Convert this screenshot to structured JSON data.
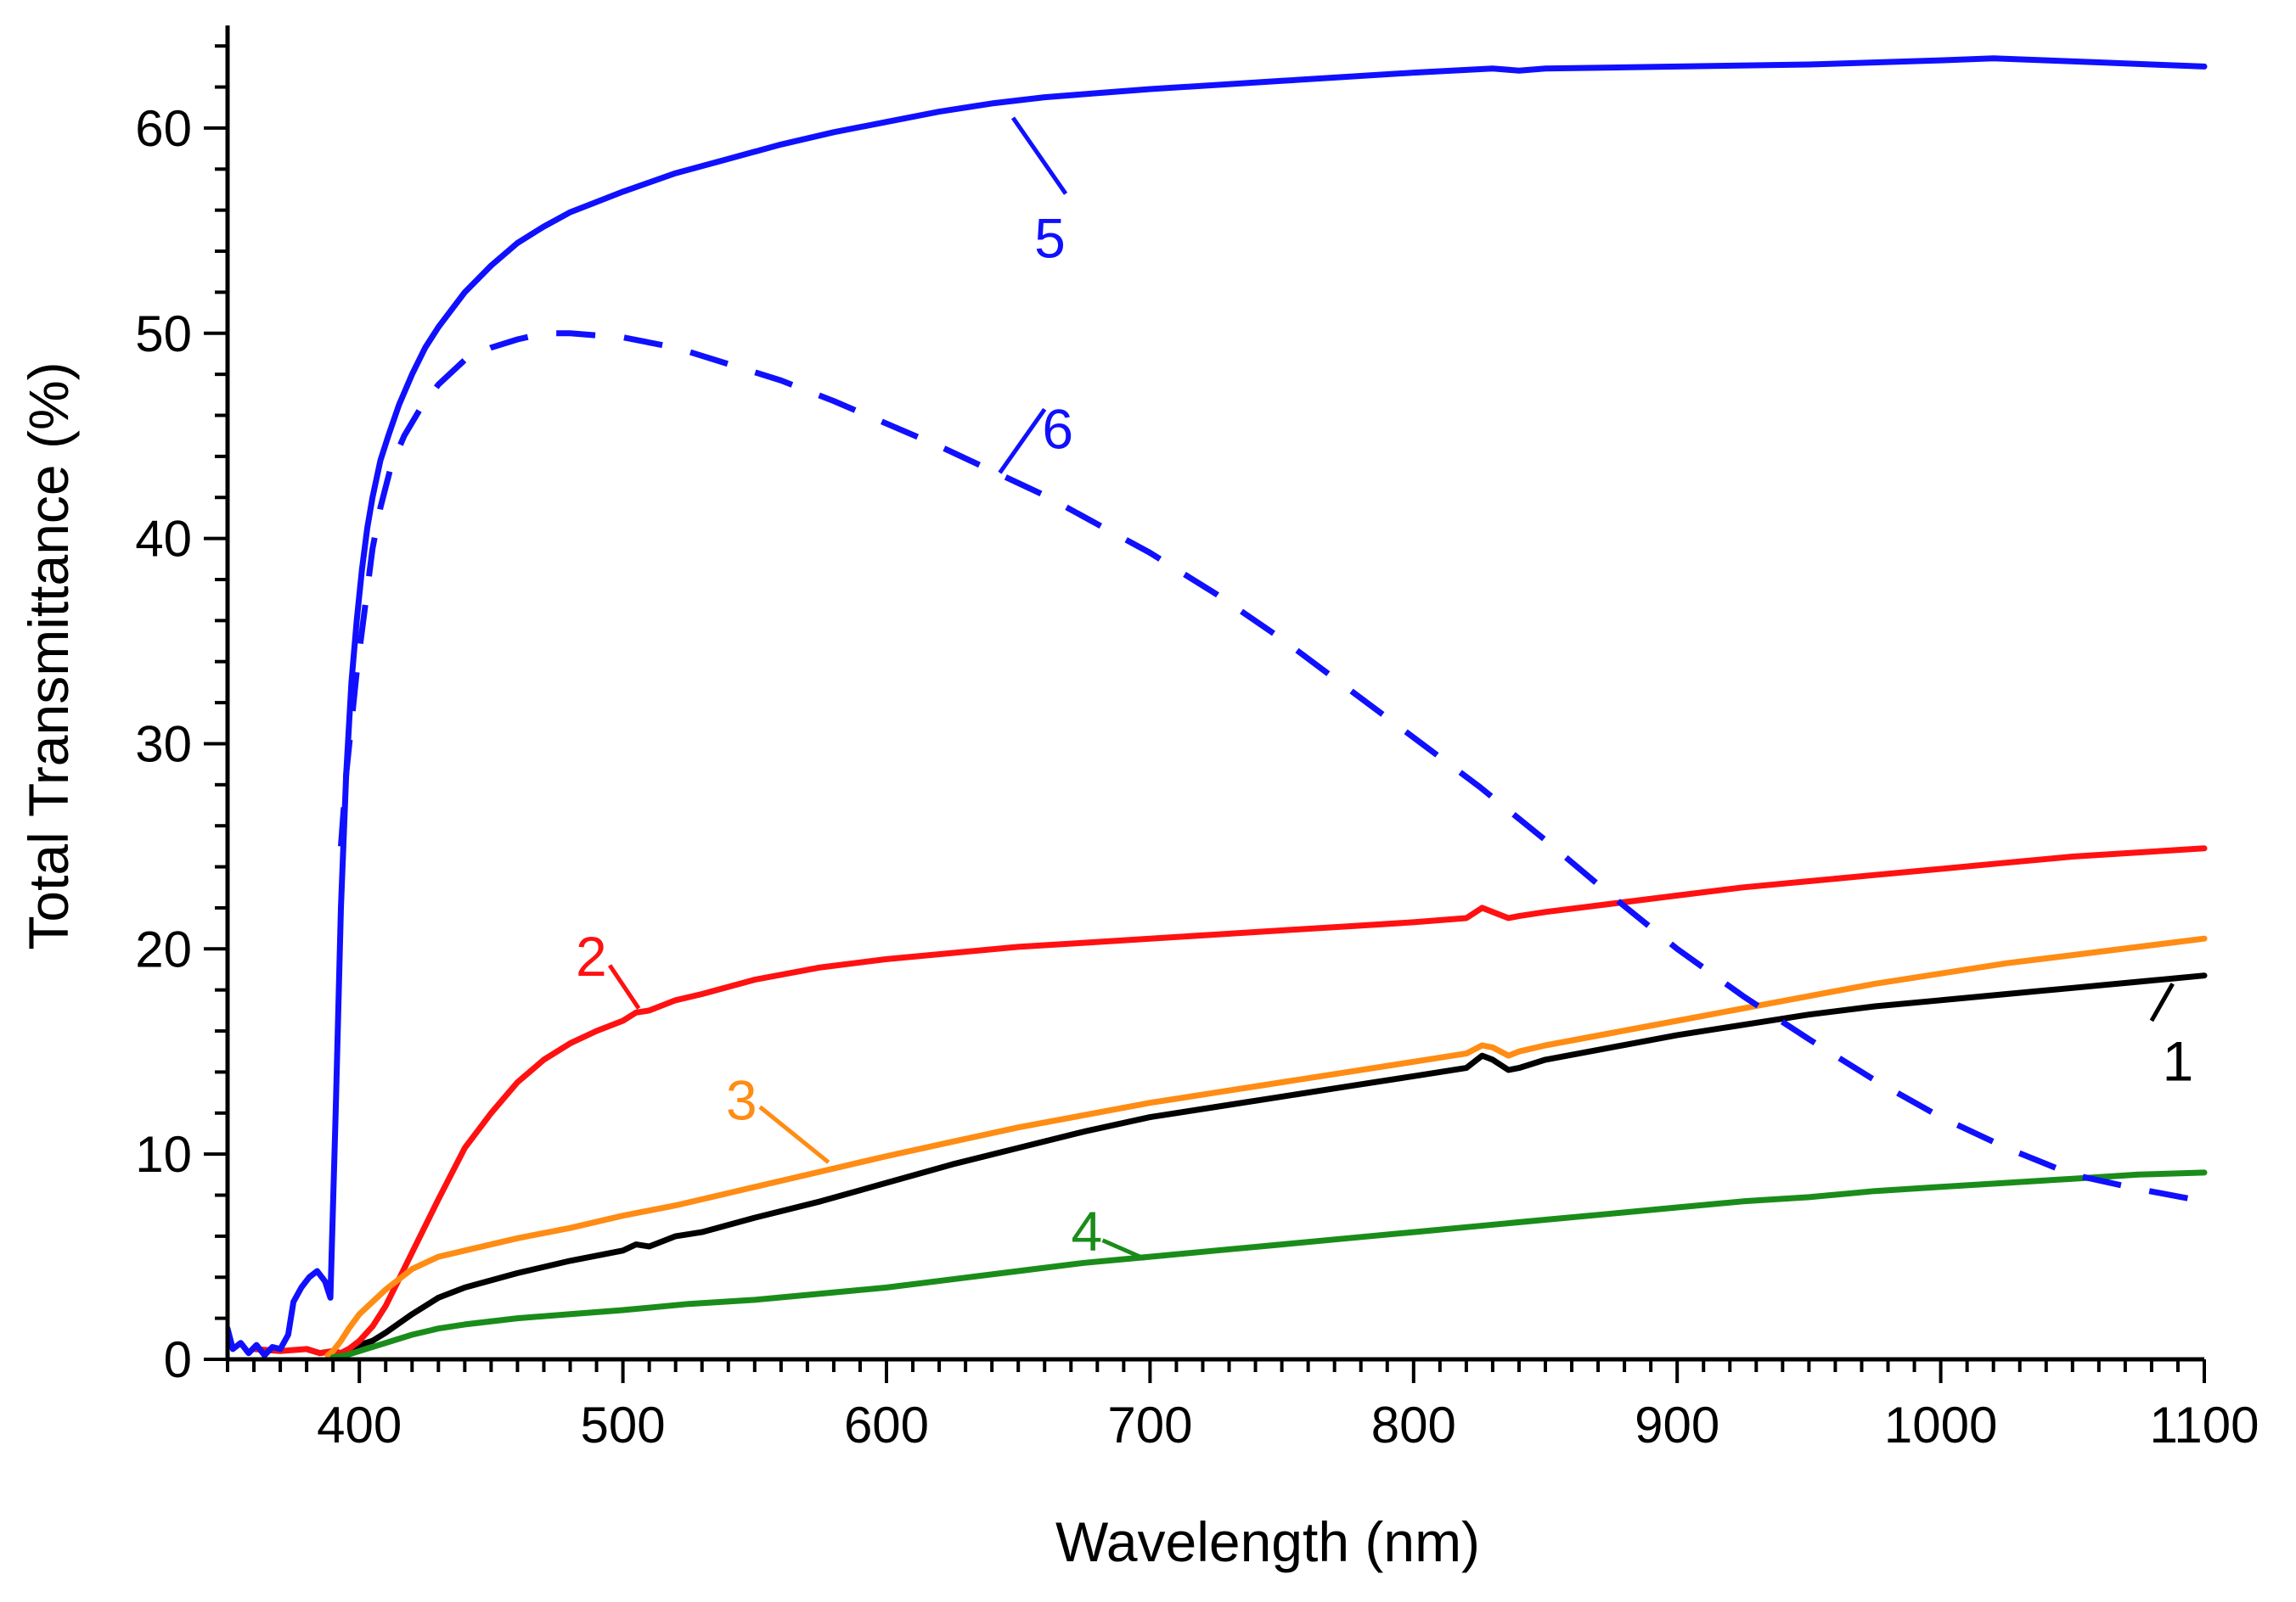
{
  "chart_data": {
    "type": "line",
    "xlabel": "Wavelength (nm)",
    "ylabel": "Total Transmittance (%)",
    "xlim": [
      350,
      1100
    ],
    "ylim": [
      0,
      65
    ],
    "x_ticks": [
      "400",
      "500",
      "600",
      "700",
      "800",
      "900",
      "1000",
      "1100"
    ],
    "y_ticks": [
      "0",
      "10",
      "20",
      "30",
      "40",
      "50",
      "60"
    ],
    "grid": false,
    "series": [
      {
        "name": "1",
        "label": "1",
        "color": "#000000",
        "dash": "solid",
        "label_at": [
          1090,
          14.5
        ],
        "leader_from": [
          1080,
          16.5
        ],
        "leader_to": [
          1088,
          18.3
        ],
        "x": [
          380,
          385,
          390,
          393,
          396,
          400,
          405,
          410,
          420,
          430,
          440,
          460,
          480,
          500,
          505,
          510,
          520,
          530,
          550,
          575,
          600,
          625,
          650,
          675,
          700,
          725,
          750,
          775,
          800,
          820,
          826,
          830,
          836,
          840,
          850,
          875,
          900,
          925,
          950,
          975,
          1000,
          1025,
          1050,
          1075,
          1100
        ],
        "y": [
          0.5,
          0.3,
          0.4,
          0.3,
          0.5,
          0.7,
          0.9,
          1.3,
          2.2,
          3.0,
          3.5,
          4.2,
          4.8,
          5.3,
          5.6,
          5.5,
          6.0,
          6.2,
          6.9,
          7.7,
          8.6,
          9.5,
          10.3,
          11.1,
          11.8,
          12.3,
          12.8,
          13.3,
          13.8,
          14.2,
          14.8,
          14.6,
          14.1,
          14.2,
          14.6,
          15.2,
          15.8,
          16.3,
          16.8,
          17.2,
          17.5,
          17.8,
          18.1,
          18.4,
          18.7
        ]
      },
      {
        "name": "2",
        "label": "2",
        "color": "#ff1111",
        "dash": "solid",
        "label_at": [
          488,
          19.6
        ],
        "leader_from": [
          495,
          19.2
        ],
        "leader_to": [
          506,
          17.1
        ],
        "x": [
          360,
          370,
          380,
          385,
          390,
          393,
          396,
          400,
          405,
          410,
          415,
          420,
          430,
          440,
          450,
          460,
          470,
          480,
          490,
          500,
          505,
          510,
          520,
          530,
          550,
          575,
          600,
          625,
          650,
          675,
          700,
          725,
          750,
          775,
          800,
          820,
          826,
          830,
          836,
          840,
          850,
          875,
          900,
          925,
          950,
          975,
          1000,
          1025,
          1050,
          1075,
          1100
        ],
        "y": [
          0.5,
          0.4,
          0.5,
          0.3,
          0.4,
          0.3,
          0.5,
          0.9,
          1.6,
          2.6,
          3.9,
          5.2,
          7.8,
          10.3,
          12.0,
          13.5,
          14.6,
          15.4,
          16.0,
          16.5,
          16.9,
          17.0,
          17.5,
          17.8,
          18.5,
          19.1,
          19.5,
          19.8,
          20.1,
          20.3,
          20.5,
          20.7,
          20.9,
          21.1,
          21.3,
          21.5,
          22.0,
          21.8,
          21.5,
          21.6,
          21.8,
          22.2,
          22.6,
          23.0,
          23.3,
          23.6,
          23.9,
          24.2,
          24.5,
          24.7,
          24.9
        ]
      },
      {
        "name": "3",
        "label": "3",
        "color": "#ff8c14",
        "dash": "solid",
        "label_at": [
          545,
          12.6
        ],
        "leader_from": [
          552,
          12.3
        ],
        "leader_to": [
          578,
          9.6
        ],
        "x": [
          388,
          390,
          393,
          396,
          400,
          405,
          410,
          420,
          430,
          440,
          460,
          480,
          500,
          520,
          540,
          560,
          580,
          600,
          625,
          650,
          675,
          700,
          725,
          750,
          775,
          800,
          820,
          826,
          830,
          836,
          840,
          850,
          875,
          900,
          925,
          950,
          975,
          1000,
          1025,
          1050,
          1075,
          1100
        ],
        "y": [
          0.2,
          0.4,
          0.9,
          1.5,
          2.2,
          2.8,
          3.4,
          4.4,
          5.0,
          5.3,
          5.9,
          6.4,
          7.0,
          7.5,
          8.1,
          8.7,
          9.3,
          9.9,
          10.6,
          11.3,
          11.9,
          12.5,
          13.0,
          13.5,
          14.0,
          14.5,
          14.9,
          15.3,
          15.2,
          14.8,
          15.0,
          15.3,
          15.9,
          16.5,
          17.1,
          17.7,
          18.3,
          18.8,
          19.3,
          19.7,
          20.1,
          20.5
        ]
      },
      {
        "name": "4",
        "label": "4",
        "color": "#1a8c1a",
        "dash": "solid",
        "label_at": [
          676,
          6.2
        ],
        "leader_from": [
          682,
          5.8
        ],
        "leader_to": [
          698,
          4.9
        ],
        "x": [
          390,
          395,
          400,
          410,
          420,
          430,
          440,
          460,
          480,
          500,
          525,
          550,
          575,
          600,
          625,
          650,
          675,
          700,
          725,
          750,
          775,
          800,
          825,
          850,
          875,
          900,
          925,
          950,
          975,
          1000,
          1025,
          1050,
          1075,
          1100
        ],
        "y": [
          0.1,
          0.2,
          0.4,
          0.8,
          1.2,
          1.5,
          1.7,
          2.0,
          2.2,
          2.4,
          2.7,
          2.9,
          3.2,
          3.5,
          3.9,
          4.3,
          4.7,
          5.0,
          5.3,
          5.6,
          5.9,
          6.2,
          6.5,
          6.8,
          7.1,
          7.4,
          7.7,
          7.9,
          8.2,
          8.4,
          8.6,
          8.8,
          9.0,
          9.1
        ]
      },
      {
        "name": "5",
        "label": "5",
        "color": "#1010ff",
        "dash": "solid",
        "label_at": [
          662,
          54.6
        ],
        "leader_from": [
          668,
          56.8
        ],
        "leader_to": [
          648,
          60.5
        ],
        "x": [
          350,
          352,
          355,
          358,
          361,
          364,
          367,
          370,
          373,
          375,
          378,
          381,
          384,
          387,
          389,
          391,
          393,
          395,
          397,
          399,
          401,
          403,
          405,
          408,
          411,
          415,
          420,
          425,
          430,
          440,
          450,
          460,
          470,
          480,
          490,
          500,
          520,
          540,
          560,
          580,
          600,
          620,
          640,
          660,
          680,
          700,
          750,
          800,
          830,
          840,
          850,
          900,
          950,
          1000,
          1020,
          1040,
          1060,
          1080,
          1100
        ],
        "y": [
          1.5,
          0.5,
          0.8,
          0.3,
          0.7,
          0.2,
          0.6,
          0.5,
          1.2,
          2.8,
          3.5,
          4.0,
          4.3,
          3.8,
          3.0,
          12.0,
          22.0,
          28.5,
          33.0,
          36.0,
          38.5,
          40.5,
          42.0,
          43.8,
          45.0,
          46.5,
          48.0,
          49.3,
          50.3,
          52.0,
          53.3,
          54.4,
          55.2,
          55.9,
          56.4,
          56.9,
          57.8,
          58.5,
          59.2,
          59.8,
          60.3,
          60.8,
          61.2,
          61.5,
          61.7,
          61.9,
          62.3,
          62.7,
          62.9,
          62.8,
          62.9,
          63.0,
          63.1,
          63.3,
          63.4,
          63.3,
          63.2,
          63.1,
          63.0
        ]
      },
      {
        "name": "6",
        "label": "6",
        "color": "#1010ff",
        "dash": "dashed",
        "label_at": [
          665,
          45.3
        ],
        "leader_from": [
          660,
          46.3
        ],
        "leader_to": [
          643,
          43.2
        ],
        "x": [
          393,
          395,
          397,
          399,
          401,
          403,
          405,
          408,
          412,
          417,
          423,
          430,
          440,
          450,
          460,
          470,
          480,
          490,
          500,
          520,
          540,
          560,
          580,
          600,
          620,
          640,
          660,
          680,
          700,
          725,
          750,
          775,
          800,
          825,
          850,
          875,
          900,
          925,
          950,
          975,
          1000,
          1025,
          1050,
          1075,
          1100
        ],
        "y": [
          25.0,
          28.5,
          31.0,
          33.5,
          35.5,
          37.5,
          39.5,
          41.5,
          43.5,
          45.0,
          46.3,
          47.5,
          48.7,
          49.3,
          49.7,
          50.0,
          50.0,
          49.9,
          49.8,
          49.3,
          48.5,
          47.7,
          46.7,
          45.6,
          44.5,
          43.3,
          42.1,
          40.7,
          39.3,
          37.3,
          35.1,
          32.7,
          30.3,
          27.9,
          25.3,
          22.6,
          20.0,
          17.7,
          15.6,
          13.6,
          11.8,
          10.3,
          9.0,
          8.3,
          7.7
        ]
      }
    ]
  }
}
